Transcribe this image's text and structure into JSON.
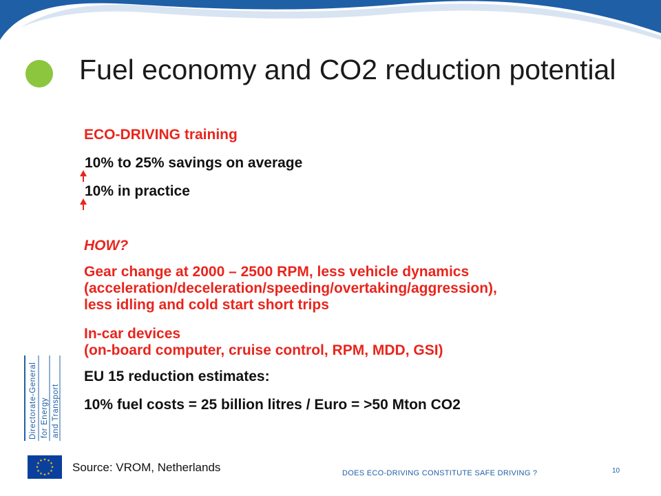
{
  "slide": {
    "title": "Fuel economy and CO2 reduction potential",
    "items": {
      "eco_heading": "ECO-DRIVING training",
      "savings_avg": "10% to 25% savings on average",
      "savings_practice": "10% in practice",
      "how": "HOW?",
      "gear_1": "Gear change at 2000 – 2500 RPM, less vehicle dynamics",
      "gear_2": "(acceleration/deceleration/speeding/overtaking/aggression),",
      "gear_3": "less idling and cold start short trips",
      "incar_1": "In-car devices",
      "incar_2": "(on-board computer, cruise control, RPM, MDD, GSI)",
      "eu_heading": "EU 15 reduction estimates:",
      "eu_detail": "10% fuel costs = 25 billion litres / Euro = >50 Mton CO2"
    },
    "logo": {
      "line1": "Directorate-General",
      "line2": "for Energy",
      "line3": "and Transport"
    },
    "source": "Source: VROM, Netherlands",
    "footer": "DOES ECO-DRIVING  CONSTITUTE  SAFE DRIVING ?",
    "page_number": "10",
    "colors": {
      "accent_blue": "#1f5fa6",
      "accent_green": "#8cc63f",
      "text_red": "#e8251d",
      "text_dark": "#111111"
    }
  }
}
